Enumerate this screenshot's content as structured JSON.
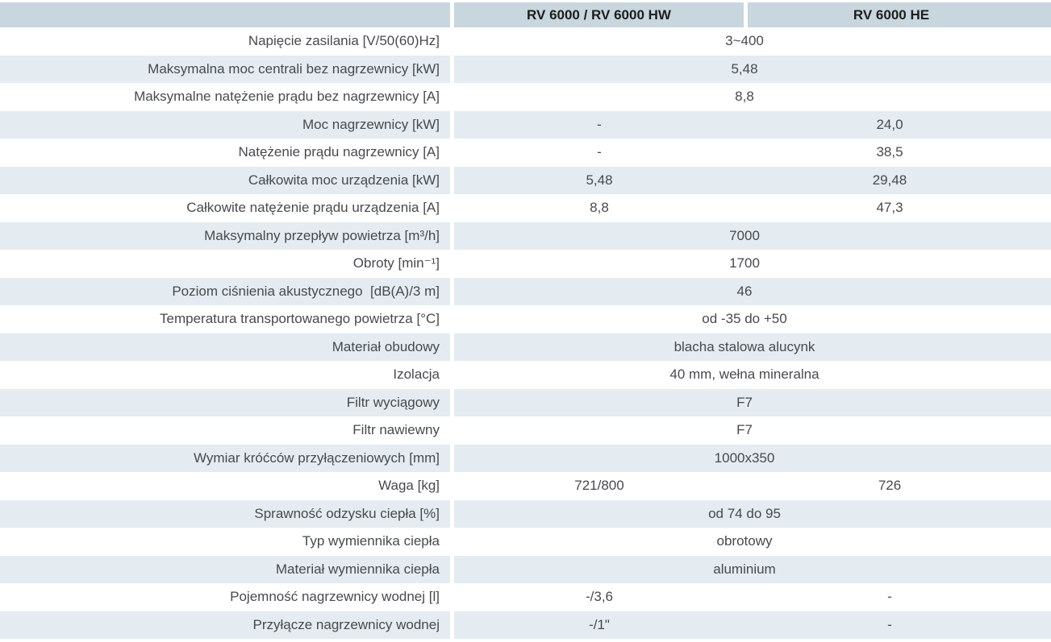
{
  "colors": {
    "header_bg": "#c8d6de",
    "row_alt_bg": "#e4ebf1",
    "row_bg": "#ffffff",
    "text": "#474a4c",
    "header_text": "#1d1e1c"
  },
  "table": {
    "header": {
      "col1": "",
      "col2": "RV 6000 / RV 6000 HW",
      "col3": "RV 6000 HE"
    },
    "rows": [
      {
        "label": "Napięcie zasilania [V/50(60)Hz]",
        "values": [
          "3~400"
        ]
      },
      {
        "label": "Maksymalna moc centrali bez nagrzewnicy [kW]",
        "values": [
          "5,48"
        ]
      },
      {
        "label": "Maksymalne natężenie prądu bez nagrzewnicy [A]",
        "values": [
          "8,8"
        ]
      },
      {
        "label": "Moc nagrzewnicy [kW]",
        "values": [
          "-",
          "24,0"
        ]
      },
      {
        "label": "Natężenie prądu nagrzewnicy [A]",
        "values": [
          "-",
          "38,5"
        ]
      },
      {
        "label": "Całkowita moc urządzenia [kW]",
        "values": [
          "5,48",
          "29,48"
        ]
      },
      {
        "label": "Całkowite natężenie prądu urządzenia [A]",
        "values": [
          "8,8",
          "47,3"
        ]
      },
      {
        "label": "Maksymalny przepływ powietrza [m³/h]",
        "values": [
          "7000"
        ]
      },
      {
        "label": "Obroty [min⁻¹]",
        "values": [
          "1700"
        ]
      },
      {
        "label": "Poziom ciśnienia akustycznego  [dB(A)/3 m]",
        "values": [
          "46"
        ]
      },
      {
        "label": "Temperatura transportowanego powietrza [°C]",
        "values": [
          "od -35 do +50"
        ]
      },
      {
        "label": "Materiał obudowy",
        "values": [
          "blacha stalowa alucynk"
        ]
      },
      {
        "label": "Izolacja",
        "values": [
          "40 mm, wełna mineralna"
        ]
      },
      {
        "label": "Filtr wyciągowy",
        "values": [
          "F7"
        ]
      },
      {
        "label": "Filtr nawiewny",
        "values": [
          "F7"
        ]
      },
      {
        "label": "Wymiar króćców przyłączeniowych [mm]",
        "values": [
          "1000x350"
        ]
      },
      {
        "label": "Waga [kg]",
        "values": [
          "721/800",
          "726"
        ]
      },
      {
        "label": "Sprawność odzysku ciepła [%]",
        "values": [
          "od 74 do 95"
        ]
      },
      {
        "label": "Typ wymiennika ciepła",
        "values": [
          "obrotowy"
        ]
      },
      {
        "label": "Materiał wymiennika ciepła",
        "values": [
          "aluminium"
        ]
      },
      {
        "label": "Pojemność nagrzewnicy wodnej [l]",
        "values": [
          "-/3,6",
          "-"
        ]
      },
      {
        "label": "Przyłącze nagrzewnicy wodnej",
        "values": [
          "-/1\"",
          "-"
        ]
      }
    ]
  }
}
